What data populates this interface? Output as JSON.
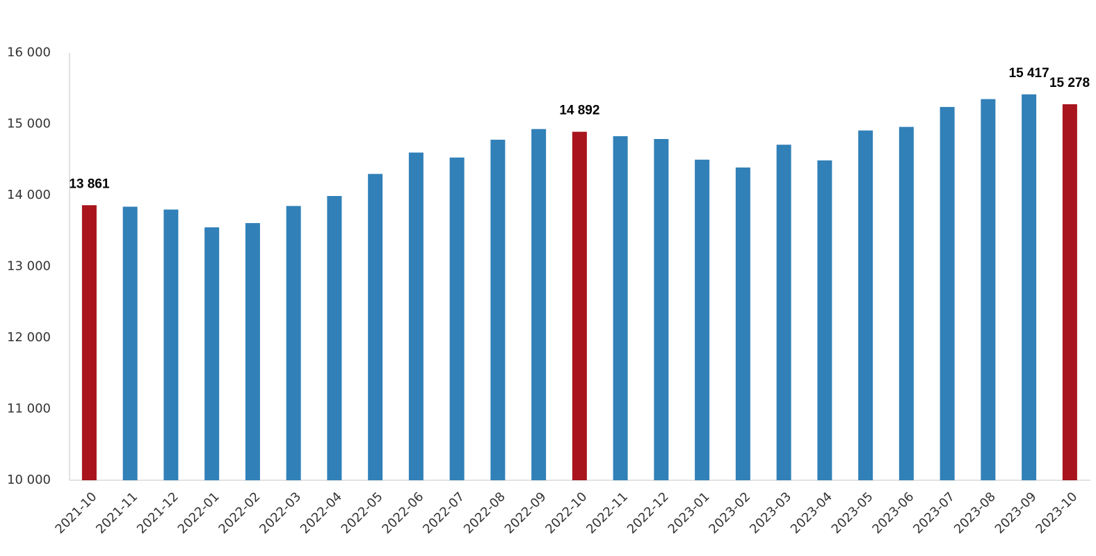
{
  "chart_data": {
    "type": "bar",
    "categories": [
      "2021-10",
      "2021-11",
      "2021-12",
      "2022-01",
      "2022-02",
      "2022-03",
      "2022-04",
      "2022-05",
      "2022-06",
      "2022-07",
      "2022-08",
      "2022-09",
      "2022-10",
      "2022-11",
      "2022-12",
      "2023-01",
      "2023-02",
      "2023-03",
      "2023-04",
      "2023-05",
      "2023-06",
      "2023-07",
      "2023-08",
      "2023-09",
      "2023-10"
    ],
    "values": [
      13861,
      13840,
      13800,
      13550,
      13610,
      13850,
      13990,
      14300,
      14600,
      14530,
      14780,
      14930,
      14892,
      14830,
      14790,
      14500,
      14390,
      14710,
      14490,
      14910,
      14960,
      15240,
      15350,
      15417,
      15278
    ],
    "value_labels": [
      "13 861",
      null,
      null,
      null,
      null,
      null,
      null,
      null,
      null,
      null,
      null,
      null,
      "14 892",
      null,
      null,
      null,
      null,
      null,
      null,
      null,
      null,
      null,
      null,
      "15 417",
      "15 278"
    ],
    "colors": [
      "#a8151c",
      "#3180b8",
      "#3180b8",
      "#3180b8",
      "#3180b8",
      "#3180b8",
      "#3180b8",
      "#3180b8",
      "#3180b8",
      "#3180b8",
      "#3180b8",
      "#3180b8",
      "#a8151c",
      "#3180b8",
      "#3180b8",
      "#3180b8",
      "#3180b8",
      "#3180b8",
      "#3180b8",
      "#3180b8",
      "#3180b8",
      "#3180b8",
      "#3180b8",
      "#3180b8",
      "#a8151c"
    ],
    "ylim": [
      10000,
      16000
    ],
    "yticks": [
      {
        "value": 10000,
        "label": "10 000"
      },
      {
        "value": 11000,
        "label": "11 000"
      },
      {
        "value": 12000,
        "label": "12 000"
      },
      {
        "value": 13000,
        "label": "13 000"
      },
      {
        "value": 14000,
        "label": "14 000"
      },
      {
        "value": 15000,
        "label": "15 000"
      },
      {
        "value": 16000,
        "label": "16 000"
      }
    ],
    "grid": false
  }
}
